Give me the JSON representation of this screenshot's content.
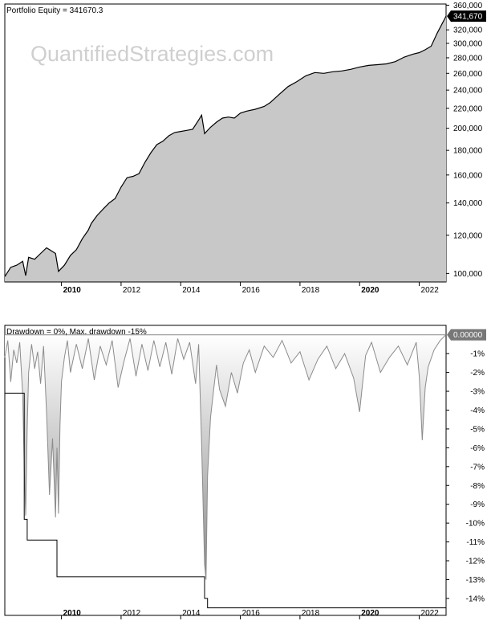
{
  "chart_data": [
    {
      "type": "area",
      "title": "Portfolio Equity = 341670.3",
      "watermark": "QuantifiedStrategies.com",
      "log_scale": true,
      "ylim": [
        96000,
        362000
      ],
      "xlim": [
        2008.1,
        2022.9
      ],
      "y_ticks": [
        {
          "v": 100000,
          "t": "100,000"
        },
        {
          "v": 120000,
          "t": "120,000"
        },
        {
          "v": 140000,
          "t": "140,000"
        },
        {
          "v": 160000,
          "t": "160,000"
        },
        {
          "v": 180000,
          "t": "180,000"
        },
        {
          "v": 200000,
          "t": "200,000"
        },
        {
          "v": 220000,
          "t": "220,000"
        },
        {
          "v": 240000,
          "t": "240,000"
        },
        {
          "v": 260000,
          "t": "260,000"
        },
        {
          "v": 280000,
          "t": "280,000"
        },
        {
          "v": 300000,
          "t": "300,000"
        },
        {
          "v": 320000,
          "t": "320,000"
        },
        {
          "v": 360000,
          "t": "360,000"
        }
      ],
      "last_value_label": "341,670",
      "x_ticks": [
        {
          "v": 2010,
          "t": "2010",
          "bold": true
        },
        {
          "v": 2012,
          "t": "2012",
          "bold": false
        },
        {
          "v": 2014,
          "t": "2014",
          "bold": false
        },
        {
          "v": 2016,
          "t": "2016",
          "bold": false
        },
        {
          "v": 2018,
          "t": "2018",
          "bold": false
        },
        {
          "v": 2020,
          "t": "2020",
          "bold": true
        },
        {
          "v": 2022,
          "t": "2022",
          "bold": false
        }
      ],
      "series": [
        {
          "x": [
            2008.1,
            2008.3,
            2008.5,
            2008.7,
            2008.8,
            2008.9,
            2009.1,
            2009.3,
            2009.5,
            2009.6,
            2009.8,
            2009.9,
            2010.1,
            2010.3,
            2010.5,
            2010.7,
            2010.9,
            2011.0,
            2011.2,
            2011.4,
            2011.6,
            2011.8,
            2012.0,
            2012.2,
            2012.4,
            2012.6,
            2012.8,
            2013.0,
            2013.2,
            2013.4,
            2013.6,
            2013.8,
            2014.0,
            2014.2,
            2014.4,
            2014.6,
            2014.7,
            2014.8,
            2015.0,
            2015.2,
            2015.4,
            2015.6,
            2015.8,
            2016.0,
            2016.2,
            2016.5,
            2016.8,
            2017.0,
            2017.3,
            2017.6,
            2017.9,
            2018.2,
            2018.5,
            2018.8,
            2019.1,
            2019.4,
            2019.7,
            2020.0,
            2020.3,
            2020.6,
            2020.9,
            2021.2,
            2021.5,
            2021.8,
            2022.0,
            2022.2,
            2022.4,
            2022.6,
            2022.9
          ],
          "y": [
            98500,
            103000,
            104000,
            106000,
            99000,
            108000,
            107000,
            110000,
            113000,
            112000,
            110000,
            101000,
            104000,
            109000,
            112000,
            118000,
            123000,
            127000,
            132000,
            136000,
            140000,
            143000,
            151000,
            158000,
            159000,
            161000,
            170000,
            178000,
            185000,
            188000,
            193000,
            196000,
            197000,
            198000,
            199000,
            208000,
            213000,
            195000,
            201000,
            206000,
            210000,
            211000,
            210000,
            215000,
            217000,
            219000,
            222000,
            226000,
            235000,
            244000,
            250000,
            257000,
            261000,
            260000,
            262000,
            263000,
            265000,
            268000,
            270000,
            271000,
            272000,
            275000,
            281000,
            285000,
            287000,
            291000,
            296000,
            315000,
            341670
          ]
        }
      ]
    },
    {
      "type": "area",
      "title": "Drawdown = 0%, Max. drawdown -15%",
      "ylim": [
        -14.9,
        0.5
      ],
      "xlim": [
        2008.1,
        2022.9
      ],
      "y_ticks": [
        {
          "v": -1,
          "t": "-1%"
        },
        {
          "v": -2,
          "t": "-2%"
        },
        {
          "v": -3,
          "t": "-3%"
        },
        {
          "v": -4,
          "t": "-4%"
        },
        {
          "v": -5,
          "t": "-5%"
        },
        {
          "v": -6,
          "t": "-6%"
        },
        {
          "v": -7,
          "t": "-7%"
        },
        {
          "v": -8,
          "t": "-8%"
        },
        {
          "v": -9,
          "t": "-9%"
        },
        {
          "v": -10,
          "t": "-10%"
        },
        {
          "v": -11,
          "t": "-11%"
        },
        {
          "v": -12,
          "t": "-12%"
        },
        {
          "v": -13,
          "t": "-13%"
        },
        {
          "v": -14,
          "t": "-14%"
        }
      ],
      "last_value_label": "0.00000",
      "x_ticks": [
        {
          "v": 2010,
          "t": "2010",
          "bold": true
        },
        {
          "v": 2012,
          "t": "2012",
          "bold": false
        },
        {
          "v": 2014,
          "t": "2014",
          "bold": false
        },
        {
          "v": 2016,
          "t": "2016",
          "bold": false
        },
        {
          "v": 2018,
          "t": "2018",
          "bold": false
        },
        {
          "v": 2020,
          "t": "2020",
          "bold": true
        },
        {
          "v": 2022,
          "t": "2022",
          "bold": false
        }
      ],
      "series": [
        {
          "x": [
            2008.1,
            2008.2,
            2008.3,
            2008.4,
            2008.5,
            2008.6,
            2008.7,
            2008.75,
            2008.8,
            2008.85,
            2008.9,
            2009.0,
            2009.1,
            2009.2,
            2009.3,
            2009.4,
            2009.5,
            2009.6,
            2009.7,
            2009.8,
            2009.85,
            2009.9,
            2009.95,
            2010.0,
            2010.1,
            2010.2,
            2010.3,
            2010.5,
            2010.7,
            2010.9,
            2011.1,
            2011.3,
            2011.5,
            2011.7,
            2011.9,
            2012.1,
            2012.3,
            2012.5,
            2012.7,
            2012.9,
            2013.1,
            2013.3,
            2013.5,
            2013.7,
            2013.9,
            2014.1,
            2014.3,
            2014.5,
            2014.6,
            2014.7,
            2014.8,
            2014.85,
            2014.9,
            2015.0,
            2015.1,
            2015.2,
            2015.3,
            2015.5,
            2015.7,
            2015.9,
            2016.1,
            2016.3,
            2016.5,
            2016.8,
            2017.1,
            2017.4,
            2017.7,
            2018.0,
            2018.3,
            2018.6,
            2018.9,
            2019.2,
            2019.5,
            2019.8,
            2020.0,
            2020.1,
            2020.2,
            2020.4,
            2020.7,
            2021.0,
            2021.3,
            2021.6,
            2021.9,
            2022.0,
            2022.1,
            2022.2,
            2022.3,
            2022.5,
            2022.7,
            2022.9
          ],
          "y": [
            -1.2,
            -0.3,
            -2.5,
            -0.8,
            -1.5,
            -0.4,
            -3.2,
            -7.0,
            -9.6,
            -5.0,
            -2.0,
            -0.5,
            -1.8,
            -0.9,
            -2.6,
            -0.6,
            -4.1,
            -8.5,
            -5.5,
            -9.7,
            -6.0,
            -9.5,
            -4.8,
            -2.5,
            -1.2,
            -0.3,
            -2.0,
            -0.5,
            -1.8,
            -0.2,
            -2.4,
            -0.6,
            -1.6,
            -0.3,
            -2.8,
            -1.4,
            -0.2,
            -2.2,
            -0.5,
            -1.9,
            -0.3,
            -1.7,
            -0.4,
            -2.1,
            -0.2,
            -1.3,
            -0.4,
            -2.6,
            -0.5,
            -5.8,
            -12.2,
            -13.0,
            -7.5,
            -4.4,
            -3.0,
            -1.6,
            -2.9,
            -3.8,
            -2.0,
            -3.1,
            -1.5,
            -0.8,
            -2.0,
            -0.6,
            -1.2,
            -0.3,
            -1.5,
            -0.9,
            -2.4,
            -1.3,
            -0.6,
            -1.8,
            -1.0,
            -2.3,
            -4.1,
            -2.6,
            -1.1,
            -0.4,
            -2.0,
            -1.2,
            -0.6,
            -1.6,
            -0.4,
            -2.2,
            -5.6,
            -2.8,
            -1.7,
            -0.8,
            -0.3,
            0.0
          ]
        }
      ],
      "max_drawdown_line": {
        "x": [
          2008.1,
          2008.75,
          2008.75,
          2008.85,
          2008.85,
          2009.85,
          2009.85,
          2014.8,
          2014.8,
          2014.9,
          2014.9,
          2022.9
        ],
        "y": [
          -3.1,
          -3.1,
          -9.8,
          -9.8,
          -10.9,
          -10.9,
          -12.85,
          -12.85,
          -14.0,
          -14.0,
          -14.5,
          -14.5
        ]
      }
    }
  ]
}
